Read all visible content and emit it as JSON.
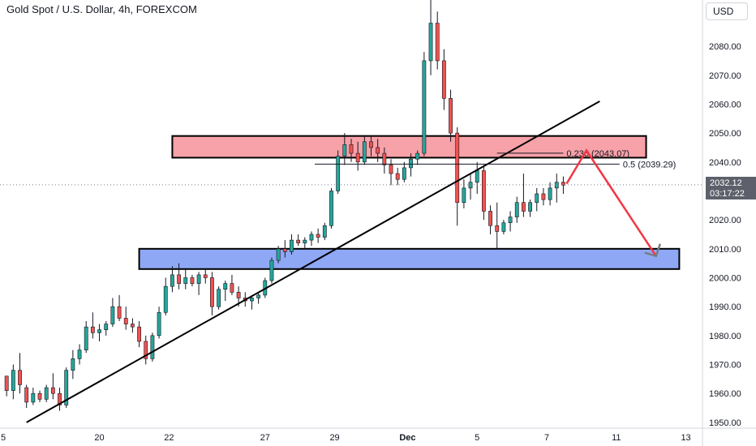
{
  "header": {
    "title": "Gold Spot / U.S. Dollar, 4h, FOREXCOM"
  },
  "currency_button": {
    "label": "USD"
  },
  "last_price": {
    "price": "2032.12",
    "countdown": "03:17:22"
  },
  "colors": {
    "up": "#26a69a",
    "down": "#ef5350",
    "resistance": "#f7a1a8",
    "support": "#8fa8f5",
    "arrow": "#f23645"
  },
  "chart_data": {
    "type": "candlestick",
    "title": "Gold Spot / U.S. Dollar, 4h, FOREXCOM",
    "xlabel": "",
    "ylabel": "",
    "ylim": [
      1948,
      2096
    ],
    "y_ticks": [
      "2080.00",
      "2070.00",
      "2060.00",
      "2050.00",
      "2040.00",
      "2030.00",
      "2020.00",
      "2010.00",
      "2000.00",
      "1990.00",
      "1980.00",
      "1970.00",
      "1960.00",
      "1950.00"
    ],
    "x_ticks": [
      "5",
      "20",
      "22",
      "27",
      "29",
      "Dec",
      "5",
      "7",
      "11",
      "13"
    ],
    "x_tick_values": [
      1,
      30,
      51,
      80,
      101,
      123,
      144,
      165,
      186,
      207
    ],
    "xlim": [
      0,
      212
    ],
    "grid": false,
    "candles": [
      [
        2,
        1966,
        1966,
        1959,
        1961
      ],
      [
        4,
        1961,
        1970,
        1958,
        1968
      ],
      [
        6,
        1968,
        1974,
        1960,
        1963
      ],
      [
        8,
        1962,
        1963,
        1955,
        1957
      ],
      [
        10,
        1957,
        1962,
        1956,
        1960
      ],
      [
        12,
        1960,
        1961,
        1957,
        1958
      ],
      [
        14,
        1958,
        1963,
        1957,
        1962
      ],
      [
        16,
        1962,
        1967,
        1958,
        1960
      ],
      [
        18,
        1960,
        1962,
        1954,
        1956
      ],
      [
        20,
        1956,
        1969,
        1955,
        1968
      ],
      [
        22,
        1968,
        1975,
        1965,
        1972
      ],
      [
        24,
        1972,
        1977,
        1970,
        1975
      ],
      [
        26,
        1975,
        1985,
        1974,
        1983
      ],
      [
        28,
        1983,
        1988,
        1979,
        1981
      ],
      [
        30,
        1981,
        1984,
        1978,
        1982
      ],
      [
        32,
        1982,
        1985,
        1980,
        1984
      ],
      [
        34,
        1984,
        1993,
        1983,
        1990
      ],
      [
        36,
        1990,
        1994,
        1985,
        1986
      ],
      [
        38,
        1986,
        1990,
        1982,
        1984
      ],
      [
        40,
        1984,
        1986,
        1981,
        1983
      ],
      [
        42,
        1983,
        1985,
        1976,
        1978
      ],
      [
        44,
        1978,
        1980,
        1970,
        1972
      ],
      [
        46,
        1972,
        1981,
        1971,
        1980
      ],
      [
        48,
        1980,
        1990,
        1979,
        1988
      ],
      [
        50,
        1988,
        2000,
        1987,
        1997
      ],
      [
        52,
        1997,
        2004,
        1995,
        2001
      ],
      [
        54,
        2001,
        2005,
        1996,
        1998
      ],
      [
        56,
        1998,
        2003,
        1996,
        2000
      ],
      [
        58,
        2000,
        2001,
        1997,
        1998
      ],
      [
        60,
        1998,
        2002,
        1994,
        2001
      ],
      [
        62,
        2001,
        2003,
        1998,
        2000
      ],
      [
        64,
        2000,
        2002,
        1987,
        1990
      ],
      [
        66,
        1990,
        1997,
        1989,
        1996
      ],
      [
        68,
        1996,
        1999,
        1992,
        1998
      ],
      [
        70,
        1998,
        2001,
        1994,
        1995
      ],
      [
        72,
        1995,
        1997,
        1990,
        1993
      ],
      [
        74,
        1993,
        1995,
        1990,
        1992
      ],
      [
        76,
        1992,
        1994,
        1989,
        1993
      ],
      [
        78,
        1993,
        1995,
        1991,
        1994
      ],
      [
        80,
        1994,
        2000,
        1993,
        1999
      ],
      [
        82,
        1999,
        2007,
        1998,
        2006
      ],
      [
        84,
        2006,
        2011,
        2005,
        2010
      ],
      [
        86,
        2010,
        2013,
        2007,
        2009
      ],
      [
        88,
        2009,
        2015,
        2008,
        2013
      ],
      [
        90,
        2013,
        2015,
        2011,
        2012
      ],
      [
        92,
        2012,
        2014,
        2010,
        2013
      ],
      [
        94,
        2013,
        2016,
        2011,
        2015
      ],
      [
        96,
        2015,
        2017,
        2012,
        2014
      ],
      [
        98,
        2014,
        2019,
        2013,
        2018
      ],
      [
        100,
        2018,
        2031,
        2017,
        2030
      ],
      [
        102,
        2030,
        2044,
        2029,
        2042
      ],
      [
        104,
        2042,
        2050,
        2039,
        2046
      ],
      [
        106,
        2046,
        2048,
        2040,
        2043
      ],
      [
        108,
        2043,
        2047,
        2037,
        2040
      ],
      [
        110,
        2040,
        2049,
        2039,
        2047
      ],
      [
        112,
        2047,
        2049,
        2042,
        2045
      ],
      [
        114,
        2045,
        2048,
        2040,
        2043
      ],
      [
        116,
        2043,
        2045,
        2036,
        2039
      ],
      [
        118,
        2039,
        2041,
        2032,
        2036
      ],
      [
        120,
        2036,
        2038,
        2032,
        2034
      ],
      [
        122,
        2034,
        2040,
        2033,
        2038
      ],
      [
        124,
        2038,
        2043,
        2035,
        2041
      ],
      [
        126,
        2041,
        2044,
        2039,
        2043
      ],
      [
        128,
        2043,
        2078,
        2042,
        2075
      ],
      [
        130,
        2075,
        2096,
        2070,
        2088
      ],
      [
        132,
        2088,
        2092,
        2072,
        2075
      ],
      [
        134,
        2075,
        2079,
        2058,
        2062
      ],
      [
        136,
        2062,
        2065,
        2047,
        2050
      ],
      [
        138,
        2050,
        2052,
        2018,
        2026
      ],
      [
        140,
        2026,
        2034,
        2024,
        2031
      ],
      [
        142,
        2031,
        2036,
        2027,
        2033
      ],
      [
        144,
        2033,
        2040,
        2029,
        2037
      ],
      [
        146,
        2037,
        2039,
        2020,
        2023
      ],
      [
        148,
        2023,
        2025,
        2015,
        2018
      ],
      [
        150,
        2018,
        2026,
        2010,
        2016
      ],
      [
        152,
        2016,
        2020,
        2015,
        2019
      ],
      [
        154,
        2019,
        2023,
        2016,
        2021
      ],
      [
        156,
        2021,
        2028,
        2019,
        2026
      ],
      [
        158,
        2026,
        2036,
        2021,
        2023
      ],
      [
        160,
        2023,
        2027,
        2021,
        2026
      ],
      [
        162,
        2026,
        2031,
        2023,
        2029
      ],
      [
        164,
        2029,
        2031,
        2025,
        2027
      ],
      [
        166,
        2027,
        2033,
        2025,
        2031
      ],
      [
        168,
        2031,
        2036,
        2026,
        2033
      ],
      [
        170,
        2033,
        2035,
        2029,
        2032
      ]
    ],
    "resistance_zone": {
      "y_top": 2049,
      "y_bottom": 2041.5,
      "x_start": 52,
      "x_end": 195
    },
    "support_zone": {
      "y_top": 2010,
      "y_bottom": 2003,
      "x_start": 42,
      "x_end": 205
    },
    "trendline": {
      "x1": 8,
      "y1": 1950,
      "x2": 181,
      "y2": 2061
    },
    "fibonacci": [
      {
        "label": "0.236 (2043.07)",
        "level": 2043.07,
        "x_start": 150,
        "x_end": 170
      },
      {
        "label": "0.5 (2039.29)",
        "level": 2039.29,
        "x_start": 95,
        "x_end": 187
      }
    ],
    "projection": {
      "points": [
        [
          171,
          2032.5
        ],
        [
          177,
          2044
        ],
        [
          198,
          2007.5
        ]
      ]
    },
    "last_price": 2032.12
  }
}
